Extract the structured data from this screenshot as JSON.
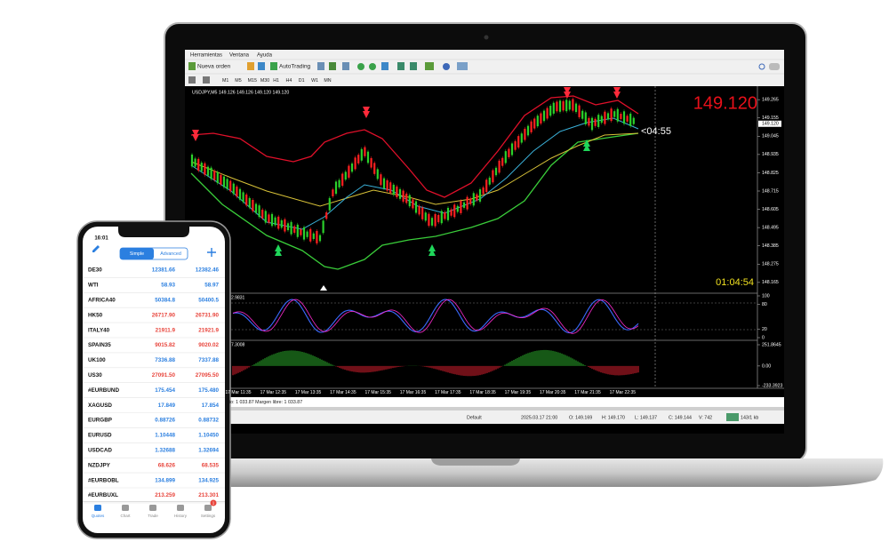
{
  "laptop": {
    "menu": [
      "Herramientas",
      "Ventana",
      "Ayuda"
    ],
    "toolbar": {
      "new_order": "Nueva orden",
      "autotrading": "AutoTrading"
    },
    "timeframes": [
      "M1",
      "M5",
      "M15",
      "M30",
      "H1",
      "H4",
      "D1",
      "W1",
      "MN"
    ],
    "chart": {
      "header": "USDJPY,M5  149.126 149.126 149.120 149.120",
      "big_price": "149.120",
      "countdown": "<04:55",
      "timer": "01:04:54",
      "price_axis": {
        "ylim": [
          148.1,
          149.33
        ],
        "ticks": [
          149.265,
          149.155,
          149.045,
          148.935,
          148.825,
          148.715,
          148.605,
          148.495,
          148.385,
          148.275,
          148.165
        ],
        "current": {
          "value": 149.12,
          "label": "149.120"
        }
      },
      "stoch": {
        "label": "2.9831",
        "ylim": [
          0,
          100
        ],
        "ticks": [
          100,
          80,
          20,
          0
        ]
      },
      "macd": {
        "label": "7.3008",
        "ylim": [
          -233.3923,
          251.8645
        ],
        "ticks": [
          251.8645,
          {
            "value": 0,
            "label": "0.00"
          },
          -233.3923
        ]
      },
      "time_labels": [
        "17 Mar 11:35",
        "17 Mar 12:35",
        "17 Mar 13:35",
        "17 Mar 14:35",
        "17 Mar 15:35",
        "17 Mar 16:35",
        "17 Mar 17:35",
        "17 Mar 18:35",
        "17 Mar 19:35",
        "17 Mar 20:35",
        "17 Mar 21:35",
        "17 Mar 22:35"
      ]
    },
    "account": "io: 1 033.87  Margen libre: 1 033.87",
    "status": [
      "Default",
      "2025.03.17 21:00",
      "O: 149.169",
      "H: 149.170",
      "L: 149.137",
      "C: 149.144",
      "V: 742",
      "143/1 kb"
    ]
  },
  "phone": {
    "time": "16:01",
    "tabs": [
      "Simple",
      "Advanced"
    ],
    "quotes": [
      {
        "symbol": "DE30",
        "bid": "12381.66",
        "ask": "12382.46",
        "color": "#2b7fe0"
      },
      {
        "symbol": "WTI",
        "bid": "58.93",
        "ask": "58.97",
        "color": "#2b7fe0"
      },
      {
        "symbol": "AFRICA40",
        "bid": "50384.8",
        "ask": "50400.5",
        "color": "#2b7fe0"
      },
      {
        "symbol": "HK50",
        "bid": "26717.90",
        "ask": "26731.90",
        "color": "#e8453c"
      },
      {
        "symbol": "ITALY40",
        "bid": "21911.9",
        "ask": "21921.9",
        "color": "#e8453c"
      },
      {
        "symbol": "SPAIN35",
        "bid": "9015.82",
        "ask": "9020.02",
        "color": "#e8453c"
      },
      {
        "symbol": "UK100",
        "bid": "7336.88",
        "ask": "7337.88",
        "color": "#2b7fe0"
      },
      {
        "symbol": "US30",
        "bid": "27091.50",
        "ask": "27095.50",
        "color": "#e8453c"
      },
      {
        "symbol": "#EURBUND",
        "bid": "175.454",
        "ask": "175.480",
        "color": "#2b7fe0"
      },
      {
        "symbol": "XAGUSD",
        "bid": "17.849",
        "ask": "17.854",
        "color": "#2b7fe0"
      },
      {
        "symbol": "EURGBP",
        "bid": "0.88726",
        "ask": "0.88732",
        "color": "#2b7fe0"
      },
      {
        "symbol": "EURUSD",
        "bid": "1.10448",
        "ask": "1.10450",
        "color": "#2b7fe0"
      },
      {
        "symbol": "USDCAD",
        "bid": "1.32688",
        "ask": "1.32694",
        "color": "#2b7fe0"
      },
      {
        "symbol": "NZDJPY",
        "bid": "68.626",
        "ask": "68.535",
        "color": "#e8453c"
      },
      {
        "symbol": "#EURBOBL",
        "bid": "134.899",
        "ask": "134.925",
        "color": "#2b7fe0"
      },
      {
        "symbol": "#EURBUXL",
        "bid": "213.259",
        "ask": "213.301",
        "color": "#e8453c"
      }
    ],
    "nav": [
      "Quotes",
      "Chart",
      "Trade",
      "History",
      "Settings"
    ],
    "badge": "1"
  }
}
